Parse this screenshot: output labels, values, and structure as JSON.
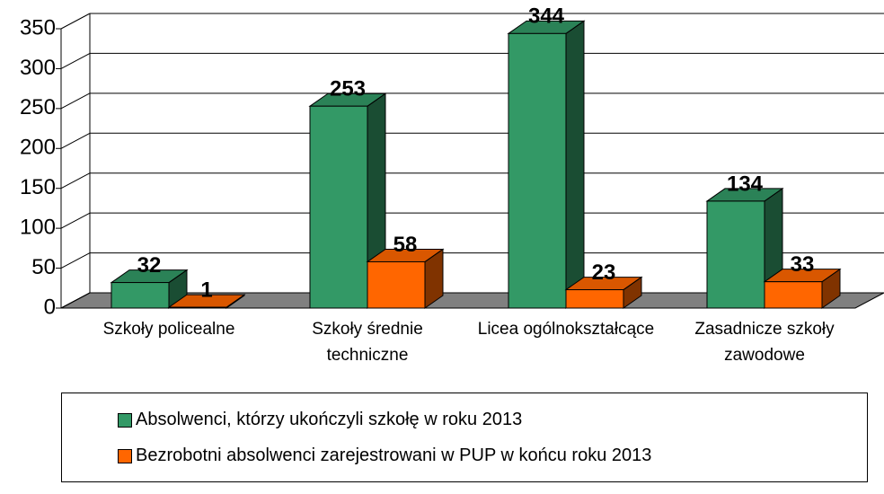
{
  "chart_data": {
    "type": "bar3d",
    "categories": [
      "Szkoły policealne",
      "Szkoły średnie techniczne",
      "Licea ogólnokształcące",
      "Zasadnicze szkoły zawodowe"
    ],
    "series": [
      {
        "name": "Absolwenci, którzy ukończyli szkołę w roku 2013",
        "color": "#339966",
        "values": [
          32,
          253,
          344,
          134
        ]
      },
      {
        "name": "Bezrobotni absolwenci zarejestrowani w PUP w końcu roku 2013",
        "color": "#ff6600",
        "values": [
          1,
          58,
          23,
          33
        ]
      }
    ],
    "ylim": [
      0,
      350
    ],
    "yticks": [
      0,
      50,
      100,
      150,
      200,
      250,
      300,
      350
    ],
    "grid": true,
    "legend": "bottom"
  }
}
